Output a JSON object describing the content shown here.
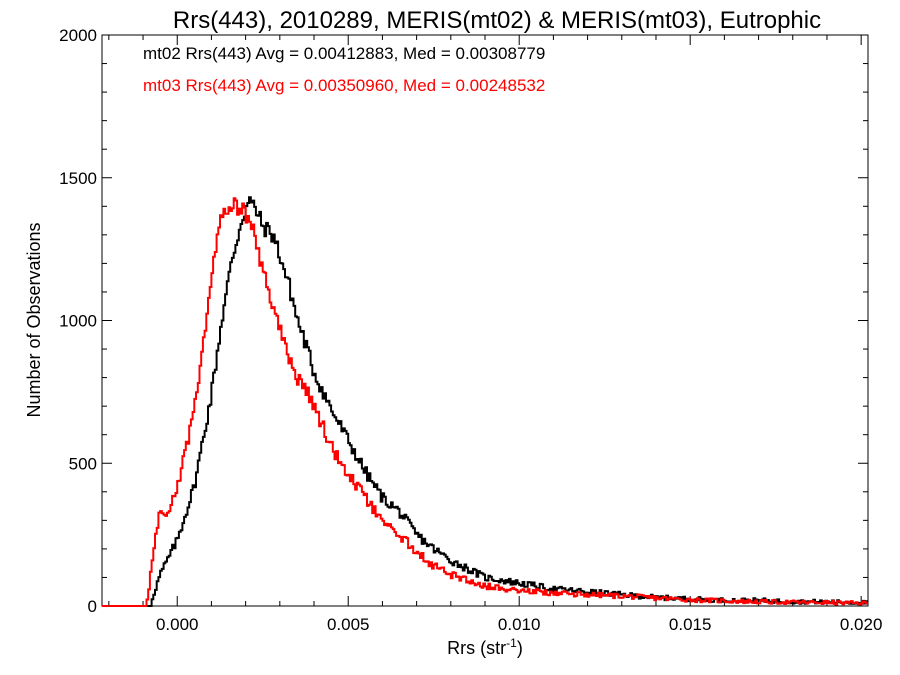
{
  "chart_data": {
    "type": "line",
    "title": "Rrs(443), 2010289, MERIS(mt02) & MERIS(mt03), Eutrophic",
    "xlabel": "Rrs (str",
    "xlabel_sup": "-1",
    "xlabel_close": ")",
    "ylabel": "Number of Observations",
    "xlim": [
      -0.0022,
      0.0202
    ],
    "ylim": [
      0,
      2000
    ],
    "xticks": [
      0.0,
      0.005,
      0.01,
      0.015,
      0.02
    ],
    "xtick_labels": [
      "0.000",
      "0.005",
      "0.010",
      "0.015",
      "0.020"
    ],
    "yticks": [
      0,
      500,
      1000,
      1500,
      2000
    ],
    "ytick_labels": [
      "0",
      "500",
      "1000",
      "1500",
      "2000"
    ],
    "grid": false,
    "legend_position": "top-left",
    "series": [
      {
        "name": "mt02",
        "legend": "mt02 Rrs(443) Avg = 0.00412883, Med = 0.00308779",
        "color": "#000000",
        "x": [
          -0.0008,
          -0.0005,
          0.0,
          0.0005,
          0.001,
          0.0013,
          0.0016,
          0.0019,
          0.0021,
          0.0023,
          0.0025,
          0.0028,
          0.003,
          0.0033,
          0.0035,
          0.0038,
          0.004,
          0.0045,
          0.005,
          0.0055,
          0.006,
          0.0065,
          0.007,
          0.0075,
          0.008,
          0.009,
          0.01,
          0.011,
          0.012,
          0.013,
          0.014,
          0.015,
          0.016,
          0.017,
          0.018,
          0.019,
          0.02
        ],
        "y": [
          0,
          110,
          230,
          420,
          740,
          1000,
          1210,
          1360,
          1420,
          1390,
          1330,
          1300,
          1230,
          1110,
          1010,
          900,
          820,
          690,
          580,
          470,
          380,
          330,
          250,
          200,
          160,
          100,
          80,
          60,
          50,
          40,
          30,
          25,
          20,
          20,
          15,
          15,
          12
        ]
      },
      {
        "name": "mt03",
        "legend": "mt03 Rrs(443) Avg = 0.00350960, Med = 0.00248532",
        "color": "#ff0000",
        "x": [
          -0.0012,
          -0.0009,
          -0.0007,
          -0.0005,
          -0.0003,
          0.0,
          0.0003,
          0.0006,
          0.0008,
          0.001,
          0.0012,
          0.0014,
          0.0016,
          0.0018,
          0.002,
          0.0022,
          0.0025,
          0.0028,
          0.003,
          0.0033,
          0.0035,
          0.0038,
          0.004,
          0.0045,
          0.005,
          0.0055,
          0.006,
          0.0065,
          0.007,
          0.0075,
          0.008,
          0.009,
          0.01,
          0.011,
          0.012,
          0.013,
          0.014,
          0.015,
          0.016,
          0.017,
          0.018,
          0.019,
          0.02
        ],
        "y": [
          0,
          0,
          180,
          340,
          300,
          420,
          570,
          780,
          960,
          1160,
          1330,
          1400,
          1410,
          1390,
          1380,
          1320,
          1180,
          1050,
          970,
          860,
          800,
          760,
          700,
          560,
          460,
          380,
          290,
          250,
          190,
          140,
          110,
          70,
          55,
          45,
          40,
          35,
          28,
          22,
          18,
          15,
          13,
          12,
          10
        ]
      }
    ]
  }
}
